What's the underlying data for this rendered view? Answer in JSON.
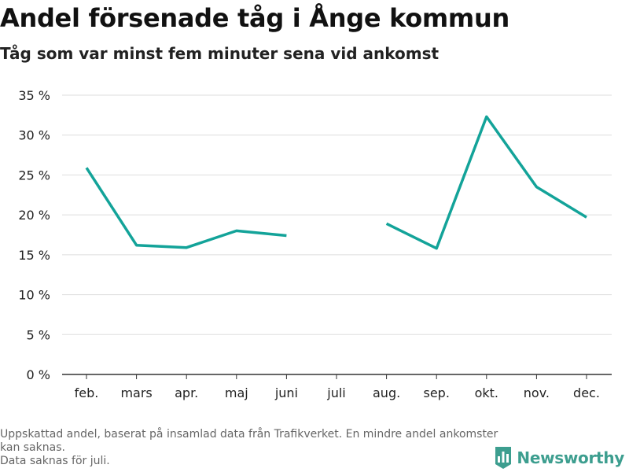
{
  "header": {
    "title": "Andel försenade tåg i Ånge kommun",
    "subtitle": "Tåg som var minst fem minuter sena vid ankomst"
  },
  "footnote": {
    "line1": "Uppskattad andel, baserat på insamlad data från Trafikverket. En mindre andel ankomster kan saknas.",
    "line2": "Data saknas för juli."
  },
  "brand": {
    "name": "Newsworthy",
    "logo_icon": "bar-chart-badge-icon",
    "color": "#3d9e8f"
  },
  "chart_data": {
    "type": "line",
    "title": "Andel försenade tåg i Ånge kommun",
    "subtitle": "Tåg som var minst fem minuter sena vid ankomst",
    "xlabel": "",
    "ylabel": "",
    "categories": [
      "feb.",
      "mars",
      "apr.",
      "maj",
      "juni",
      "juli",
      "aug.",
      "sep.",
      "okt.",
      "nov.",
      "dec."
    ],
    "series": [
      {
        "values": [
          25.9,
          16.2,
          15.9,
          18.0,
          17.4,
          null,
          18.9,
          15.8,
          32.3,
          23.5,
          19.7
        ],
        "color": "#13a399"
      }
    ],
    "ylim": [
      0,
      35
    ],
    "yticks": [
      0,
      5,
      10,
      15,
      20,
      25,
      30,
      35
    ],
    "ytick_labels": [
      "0 %",
      "5 %",
      "10 %",
      "15 %",
      "20 %",
      "25 %",
      "30 %",
      "35 %"
    ],
    "grid": true,
    "legend": "none"
  }
}
